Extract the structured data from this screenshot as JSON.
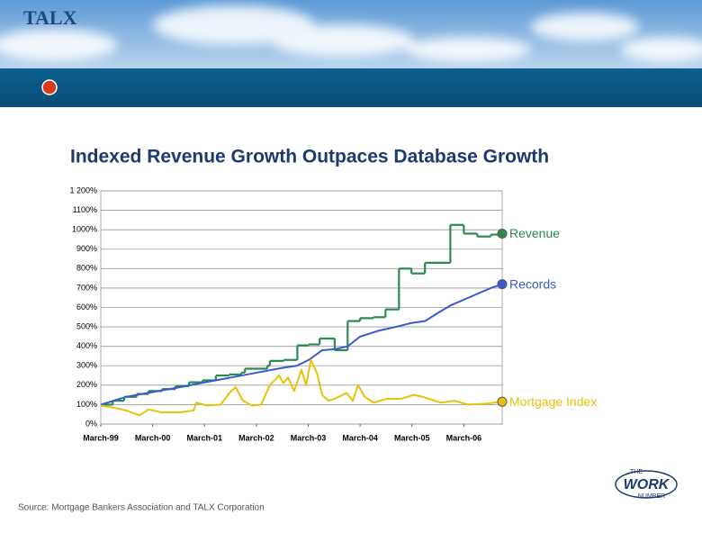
{
  "header": {
    "logo": "TALX"
  },
  "footer": {
    "source": "Source: Mortgage Bankers Association and TALX Corporation",
    "logo_top": "THE",
    "logo_main": "WORK",
    "logo_bottom": "NUMBER"
  },
  "chart_data": {
    "type": "line",
    "title": "Indexed Revenue Growth Outpaces Database Growth",
    "xlim": [
      1999.17,
      2006.91
    ],
    "xticks": [
      {
        "value": 1999.17,
        "label": "March-99"
      },
      {
        "value": 2000.17,
        "label": "March-00"
      },
      {
        "value": 2001.17,
        "label": "March-01"
      },
      {
        "value": 2002.17,
        "label": "March-02"
      },
      {
        "value": 2003.17,
        "label": "March-03"
      },
      {
        "value": 2004.17,
        "label": "March-04"
      },
      {
        "value": 2005.17,
        "label": "March-05"
      },
      {
        "value": 2006.17,
        "label": "March-06"
      }
    ],
    "ylim": [
      0,
      1200
    ],
    "yticks": [
      {
        "value": 0,
        "label": "0%"
      },
      {
        "value": 100,
        "label": "100%"
      },
      {
        "value": 200,
        "label": "200%"
      },
      {
        "value": 300,
        "label": "300%"
      },
      {
        "value": 400,
        "label": "400%"
      },
      {
        "value": 500,
        "label": "500%"
      },
      {
        "value": 600,
        "label": "600%"
      },
      {
        "value": 700,
        "label": "700%"
      },
      {
        "value": 800,
        "label": "800%"
      },
      {
        "value": 900,
        "label": "900%"
      },
      {
        "value": 1000,
        "label": "1000%"
      },
      {
        "value": 1100,
        "label": "1100%"
      },
      {
        "value": 1200,
        "label": "1 200%"
      }
    ],
    "grid": true,
    "series": [
      {
        "name": "Revenue",
        "color": "#2a8a50",
        "step": true,
        "x": [
          1999.17,
          1999.4,
          1999.62,
          1999.86,
          2000.09,
          2000.35,
          2000.61,
          2000.87,
          2001.13,
          2001.39,
          2001.65,
          2001.88,
          2001.95,
          2002.38,
          2002.43,
          2002.7,
          2002.96,
          2003.18,
          2003.39,
          2003.68,
          2003.93,
          2004.17,
          2004.43,
          2004.66,
          2004.92,
          2005.16,
          2005.42,
          2005.91,
          2006.17,
          2006.43,
          2006.69,
          2006.91
        ],
        "values": [
          100,
          120,
          140,
          155,
          170,
          180,
          195,
          215,
          225,
          250,
          255,
          265,
          285,
          300,
          325,
          330,
          405,
          410,
          440,
          380,
          530,
          545,
          550,
          590,
          800,
          775,
          830,
          1025,
          980,
          965,
          975,
          980
        ]
      },
      {
        "name": "Records",
        "color": "#3a5bd0",
        "step": false,
        "x": [
          1999.17,
          1999.66,
          2000.18,
          2000.7,
          2001.18,
          2001.69,
          2002.19,
          2002.69,
          2002.95,
          2003.18,
          2003.44,
          2003.68,
          2003.93,
          2004.17,
          2004.52,
          2004.86,
          2005.16,
          2005.42,
          2005.66,
          2005.91,
          2006.17,
          2006.43,
          2006.69,
          2006.91
        ],
        "values": [
          100,
          140,
          165,
          190,
          215,
          240,
          265,
          290,
          300,
          330,
          380,
          385,
          400,
          450,
          480,
          500,
          520,
          530,
          570,
          610,
          640,
          670,
          700,
          720
        ]
      },
      {
        "name": "Mortgage Index",
        "color": "#e8c20a",
        "step": false,
        "x": [
          1999.17,
          1999.4,
          1999.66,
          1999.92,
          2000.09,
          2000.35,
          2000.7,
          2000.96,
          2001.01,
          2001.22,
          2001.48,
          2001.65,
          2001.77,
          2001.91,
          2002.09,
          2002.26,
          2002.43,
          2002.61,
          2002.69,
          2002.78,
          2002.9,
          2003.04,
          2003.13,
          2003.22,
          2003.34,
          2003.44,
          2003.56,
          2003.68,
          2003.91,
          2004.03,
          2004.13,
          2004.26,
          2004.43,
          2004.69,
          2004.95,
          2005.21,
          2005.38,
          2005.73,
          2005.99,
          2006.25,
          2006.6,
          2006.91
        ],
        "values": [
          95,
          85,
          70,
          45,
          75,
          60,
          60,
          70,
          110,
          95,
          100,
          160,
          190,
          120,
          95,
          100,
          200,
          250,
          210,
          240,
          170,
          280,
          200,
          330,
          260,
          150,
          120,
          130,
          160,
          120,
          200,
          140,
          110,
          130,
          130,
          150,
          140,
          110,
          120,
          100,
          105,
          115
        ]
      }
    ]
  }
}
